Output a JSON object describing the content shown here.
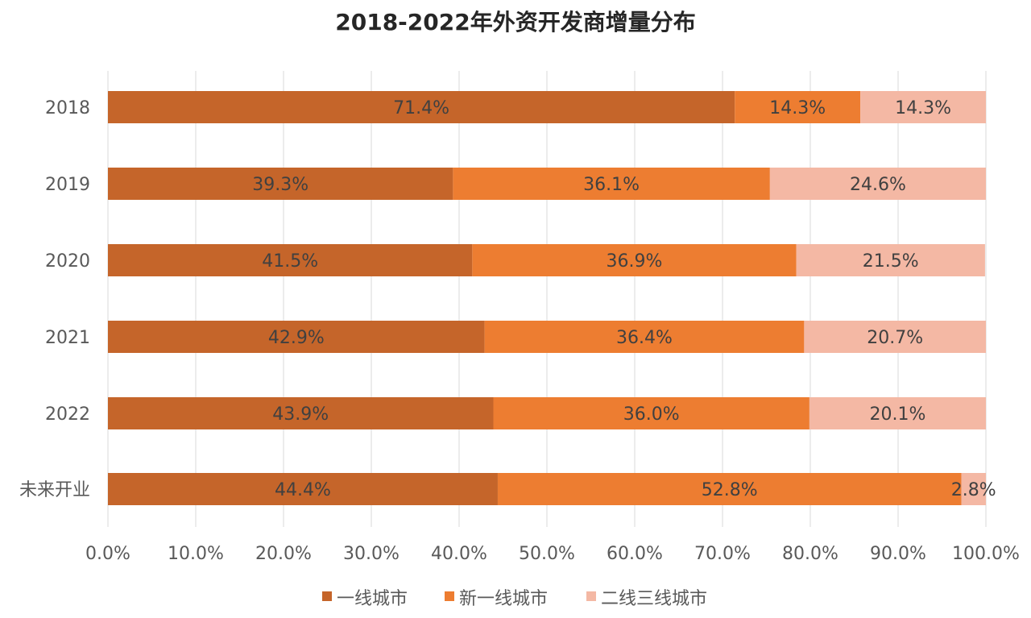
{
  "chart_data": {
    "type": "bar",
    "orientation": "horizontal",
    "stacked": "percent",
    "title": "2018-2022年外资开发商增量分布",
    "categories": [
      "2018",
      "2019",
      "2020",
      "2021",
      "2022",
      "未来开业"
    ],
    "series": [
      {
        "name": "一线城市",
        "color": "#c5652a",
        "values": [
          71.4,
          39.3,
          41.5,
          42.9,
          43.9,
          44.4
        ],
        "labels": [
          "71.4%",
          "39.3%",
          "41.5%",
          "42.9%",
          "43.9%",
          "44.4%"
        ]
      },
      {
        "name": "新一线城市",
        "color": "#ed7d31",
        "values": [
          14.3,
          36.1,
          36.9,
          36.4,
          36.0,
          52.8
        ],
        "labels": [
          "14.3%",
          "36.1%",
          "36.9%",
          "36.4%",
          "36.0%",
          "52.8%"
        ]
      },
      {
        "name": "二线三线城市",
        "color": "#f4b8a4",
        "values": [
          14.3,
          24.6,
          21.5,
          20.7,
          20.1,
          2.8
        ],
        "labels": [
          "14.3%",
          "24.6%",
          "21.5%",
          "20.7%",
          "20.1%",
          "2.8%"
        ]
      }
    ],
    "xlim": [
      0,
      100
    ],
    "x_ticks": [
      "0.0%",
      "10.0%",
      "20.0%",
      "30.0%",
      "40.0%",
      "50.0%",
      "60.0%",
      "70.0%",
      "80.0%",
      "90.0%",
      "100.0%"
    ],
    "grid": true,
    "legend_position": "bottom"
  }
}
